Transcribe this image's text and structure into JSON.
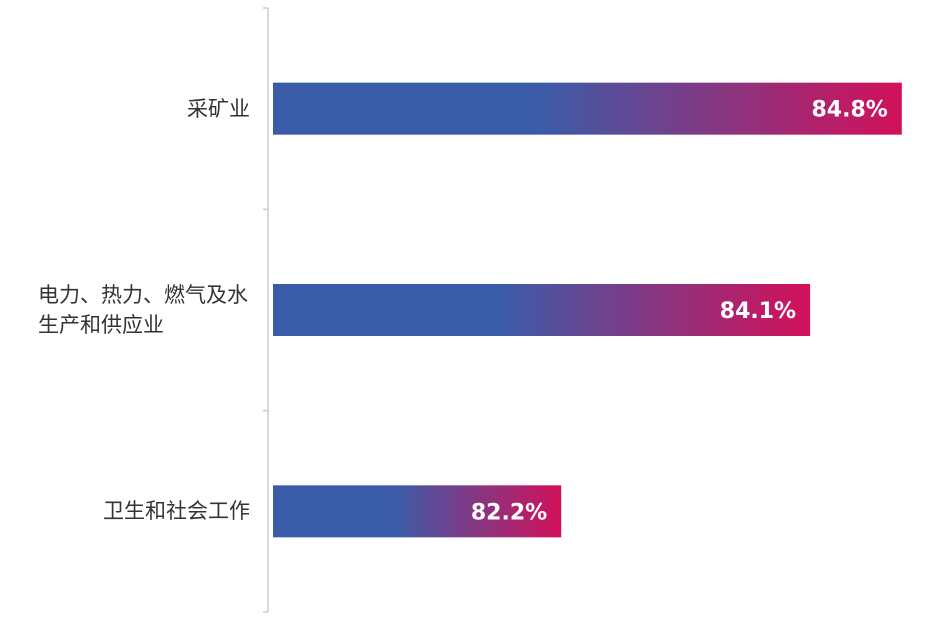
{
  "chart_data": {
    "type": "bar",
    "orientation": "horizontal",
    "categories": [
      "采矿业",
      "电力、热力、燃气及水生产和供应业",
      "卫生和社会工作"
    ],
    "values": [
      84.8,
      84.1,
      82.2
    ],
    "value_labels": [
      "84.8%",
      "84.1%",
      "82.2%"
    ],
    "xlim": [
      80,
      85
    ],
    "colors": [
      "#3a5ca8",
      "#d3105a"
    ]
  }
}
